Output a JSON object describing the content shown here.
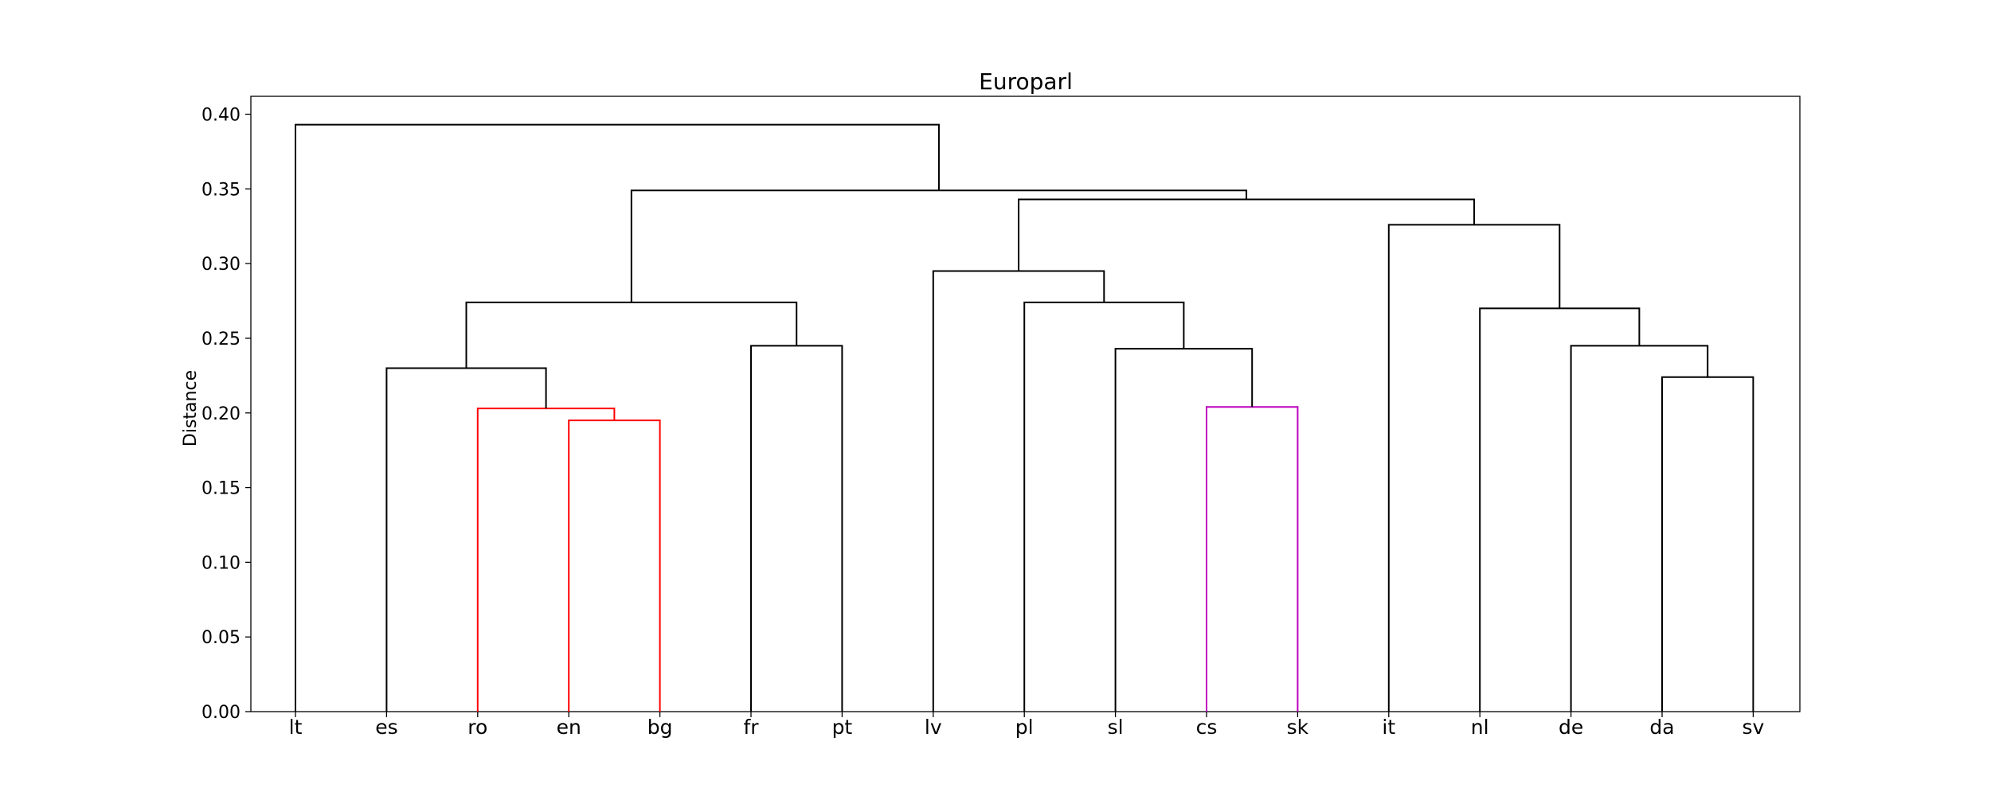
{
  "chart_data": {
    "type": "dendrogram",
    "title": "Europarl",
    "ylabel": "Distance",
    "xlabel": "",
    "ylim": [
      0,
      0.412
    ],
    "yticks": [
      "0.00",
      "0.05",
      "0.10",
      "0.15",
      "0.20",
      "0.25",
      "0.30",
      "0.35",
      "0.40"
    ],
    "leaves": [
      "lt",
      "es",
      "ro",
      "en",
      "bg",
      "fr",
      "pt",
      "lv",
      "pl",
      "sl",
      "cs",
      "sk",
      "it",
      "nl",
      "de",
      "da",
      "sv"
    ],
    "links": [
      {
        "left": "en",
        "right": "bg",
        "height": 0.195,
        "color": "#ff0000"
      },
      {
        "left": "ro",
        "right": "en|bg",
        "height": 0.203,
        "color": "#ff0000"
      },
      {
        "left": "es",
        "right": "ro|en|bg",
        "height": 0.23,
        "color": "#000000"
      },
      {
        "left": "fr",
        "right": "pt",
        "height": 0.245,
        "color": "#000000"
      },
      {
        "left": "es|ro|en|bg",
        "right": "fr|pt",
        "height": 0.274,
        "color": "#000000"
      },
      {
        "left": "cs",
        "right": "sk",
        "height": 0.204,
        "color": "#bf00bf"
      },
      {
        "left": "sl",
        "right": "cs|sk",
        "height": 0.243,
        "color": "#000000"
      },
      {
        "left": "pl",
        "right": "sl|cs|sk",
        "height": 0.274,
        "color": "#000000"
      },
      {
        "left": "lv",
        "right": "pl|sl|cs|sk",
        "height": 0.295,
        "color": "#000000"
      },
      {
        "left": "da",
        "right": "sv",
        "height": 0.224,
        "color": "#000000"
      },
      {
        "left": "de",
        "right": "da|sv",
        "height": 0.245,
        "color": "#000000"
      },
      {
        "left": "nl",
        "right": "de|da|sv",
        "height": 0.27,
        "color": "#000000"
      },
      {
        "left": "it",
        "right": "nl|de|da|sv",
        "height": 0.326,
        "color": "#000000"
      },
      {
        "left": "lv|pl|sl|cs|sk",
        "right": "it|nl|de|da|sv",
        "height": 0.343,
        "color": "#000000"
      },
      {
        "left": "es|ro|en|bg|fr|pt",
        "right": "lv|pl|sl|cs|sk|it|nl|de|da|sv",
        "height": 0.349,
        "color": "#000000"
      },
      {
        "left": "lt",
        "right": "es|ro|en|bg|fr|pt|lv|pl|sl|cs|sk|it|nl|de|da|sv",
        "height": 0.393,
        "color": "#000000"
      }
    ],
    "grid": false,
    "legend": "none"
  }
}
